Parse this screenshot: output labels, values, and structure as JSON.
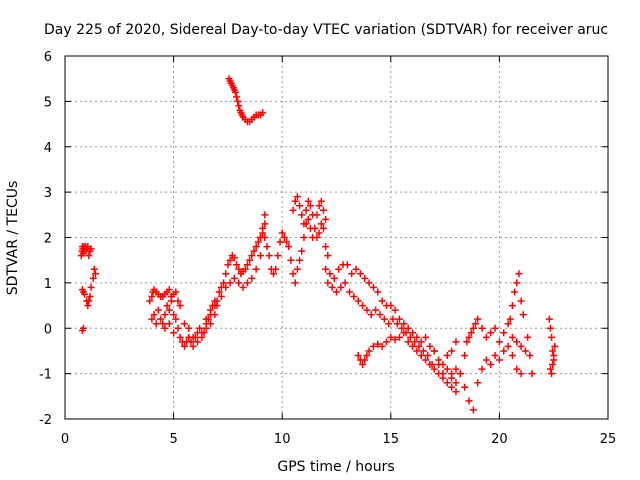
{
  "chart_data": {
    "type": "scatter",
    "title": "Day 225 of 2020, Sidereal Day-to-day VTEC variation (SDTVAR) for receiver aruc",
    "xlabel": "GPS time / hours",
    "ylabel": "SDTVAR / TECUs",
    "xlim": [
      0,
      25
    ],
    "ylim": [
      -2,
      6
    ],
    "xticks": [
      0,
      5,
      10,
      15,
      20,
      25
    ],
    "yticks": [
      -2,
      -1,
      0,
      1,
      2,
      3,
      4,
      5,
      6
    ],
    "grid": true,
    "marker": "+",
    "series": [
      {
        "name": "SDTVAR",
        "color": "#ff0000",
        "x": [
          0.75,
          0.78,
          0.8,
          0.82,
          0.85,
          0.88,
          0.9,
          0.95,
          1.0,
          1.05,
          1.1,
          1.15,
          1.2,
          0.8,
          0.85,
          0.9,
          1.0,
          1.05,
          1.1,
          1.15,
          1.2,
          1.3,
          1.35,
          1.4,
          0.8,
          0.85,
          3.9,
          4.0,
          4.05,
          4.1,
          4.2,
          4.3,
          4.4,
          4.5,
          4.6,
          4.7,
          4.8,
          4.9,
          5.0,
          5.1,
          5.2,
          5.3,
          4.0,
          4.1,
          4.2,
          4.3,
          4.4,
          4.5,
          4.6,
          4.7,
          4.8,
          4.9,
          5.0,
          5.1,
          4.6,
          4.8,
          5.0,
          5.2,
          5.3,
          5.4,
          5.5,
          5.6,
          5.7,
          5.8,
          5.9,
          6.0,
          6.1,
          6.2,
          6.3,
          6.4,
          6.5,
          6.6,
          6.7,
          6.8,
          6.9,
          5.5,
          5.7,
          5.9,
          6.1,
          6.3,
          6.5,
          6.7,
          6.9,
          6.5,
          6.7,
          6.9,
          7.0,
          7.1,
          7.2,
          7.3,
          7.4,
          7.5,
          7.6,
          7.7,
          7.8,
          7.9,
          8.0,
          8.1,
          8.2,
          8.3,
          8.4,
          8.5,
          8.6,
          8.7,
          8.8,
          8.9,
          9.0,
          9.1,
          9.2,
          7.0,
          7.2,
          7.4,
          7.6,
          7.8,
          8.0,
          8.2,
          8.4,
          8.6,
          8.8,
          9.0,
          9.2,
          7.55,
          7.6,
          7.65,
          7.7,
          7.75,
          7.8,
          7.85,
          7.9,
          7.95,
          8.0,
          8.05,
          8.1,
          8.15,
          8.2,
          8.3,
          8.4,
          8.5,
          8.6,
          8.7,
          8.8,
          8.9,
          9.0,
          9.1,
          9.0,
          9.1,
          9.2,
          9.3,
          9.4,
          9.5,
          9.6,
          9.7,
          9.8,
          9.9,
          10.0,
          10.1,
          10.2,
          10.3,
          10.4,
          10.5,
          10.6,
          10.7,
          10.8,
          10.9,
          11.0,
          11.1,
          11.2,
          11.3,
          11.4,
          11.5,
          11.6,
          11.7,
          11.8,
          11.9,
          12.0,
          10.5,
          10.6,
          10.7,
          10.8,
          10.9,
          11.0,
          11.1,
          11.2,
          11.3,
          11.4,
          11.5,
          11.6,
          11.7,
          11.8,
          11.9,
          12.0,
          12.1,
          12.0,
          12.2,
          12.4,
          12.6,
          12.8,
          13.0,
          13.2,
          13.4,
          13.6,
          13.8,
          14.0,
          14.2,
          14.4,
          14.6,
          14.8,
          15.0,
          15.2,
          15.4,
          15.6,
          15.8,
          16.0,
          16.2,
          16.4,
          16.6,
          16.8,
          17.0,
          17.2,
          17.4,
          17.6,
          17.8,
          18.0,
          12.1,
          12.3,
          12.5,
          12.7,
          12.9,
          13.1,
          13.3,
          13.5,
          13.7,
          13.9,
          14.1,
          14.3,
          14.5,
          14.7,
          14.9,
          15.1,
          15.3,
          15.5,
          15.7,
          15.9,
          16.1,
          16.3,
          16.5,
          16.7,
          16.9,
          13.5,
          13.6,
          13.7,
          13.8,
          13.9,
          14.0,
          14.2,
          14.4,
          14.6,
          14.8,
          15.0,
          15.2,
          15.4,
          15.6,
          15.8,
          16.0,
          16.2,
          16.4,
          16.6,
          16.8,
          17.0,
          17.2,
          17.4,
          17.6,
          17.8,
          18.0,
          17.0,
          17.2,
          17.4,
          17.6,
          17.8,
          18.0,
          18.2,
          18.4,
          18.5,
          18.6,
          18.7,
          18.8,
          18.9,
          19.0,
          19.2,
          19.4,
          19.6,
          19.8,
          20.0,
          20.2,
          20.4,
          20.6,
          20.8,
          21.0,
          21.2,
          17.6,
          17.8,
          18.0,
          18.2,
          18.4,
          18.6,
          18.8,
          19.0,
          19.2,
          19.4,
          19.6,
          19.8,
          20.0,
          20.2,
          20.4,
          20.6,
          20.8,
          21.0,
          20.5,
          20.6,
          20.7,
          20.8,
          20.9,
          21.0,
          21.1,
          21.3,
          21.4,
          21.5,
          22.3,
          22.35,
          22.4,
          22.45,
          22.5,
          22.35,
          22.4,
          22.45,
          22.5,
          22.55
        ],
        "y": [
          1.6,
          1.7,
          1.8,
          1.75,
          1.65,
          1.8,
          1.7,
          1.8,
          1.75,
          1.8,
          1.6,
          1.7,
          1.75,
          0.85,
          0.8,
          0.75,
          0.6,
          0.5,
          0.6,
          0.7,
          0.9,
          1.1,
          1.3,
          1.2,
          -0.05,
          -0.0,
          0.6,
          0.7,
          0.8,
          0.85,
          0.8,
          0.75,
          0.7,
          0.7,
          0.75,
          0.8,
          0.85,
          0.7,
          0.75,
          0.8,
          0.6,
          0.5,
          0.2,
          0.3,
          0.1,
          0.4,
          0.2,
          0.1,
          0.3,
          0.5,
          0.4,
          0.6,
          0.3,
          0.2,
          0.0,
          0.1,
          -0.1,
          0.0,
          -0.2,
          -0.3,
          -0.4,
          -0.3,
          -0.2,
          -0.3,
          -0.4,
          -0.2,
          -0.1,
          0.0,
          -0.2,
          -0.1,
          0.1,
          0.2,
          0.3,
          0.5,
          0.6,
          0.1,
          0.0,
          -0.2,
          -0.3,
          -0.1,
          0.0,
          0.1,
          0.3,
          0.2,
          0.4,
          0.5,
          0.6,
          0.8,
          0.9,
          1.0,
          1.2,
          1.4,
          1.5,
          1.6,
          1.55,
          1.4,
          1.3,
          1.2,
          1.25,
          1.3,
          1.4,
          1.5,
          1.6,
          1.7,
          1.8,
          1.9,
          2.0,
          2.2,
          2.5,
          0.5,
          0.7,
          0.9,
          1.0,
          1.1,
          1.0,
          0.9,
          1.0,
          1.1,
          1.3,
          1.6,
          2.3,
          5.5,
          5.45,
          5.4,
          5.35,
          5.3,
          5.25,
          5.2,
          5.1,
          5.0,
          4.9,
          4.8,
          4.75,
          4.7,
          4.65,
          4.6,
          4.55,
          4.55,
          4.6,
          4.65,
          4.7,
          4.7,
          4.7,
          4.75,
          2.0,
          2.1,
          2.0,
          1.8,
          1.6,
          1.3,
          1.2,
          1.3,
          1.6,
          1.9,
          2.1,
          2.0,
          1.9,
          1.8,
          1.5,
          1.2,
          1.0,
          1.3,
          1.5,
          1.7,
          2.0,
          2.3,
          2.4,
          2.2,
          2.0,
          2.2,
          2.5,
          2.7,
          2.8,
          2.6,
          2.4,
          2.6,
          2.8,
          2.9,
          2.7,
          2.5,
          2.3,
          2.6,
          2.8,
          2.7,
          2.5,
          2.2,
          2.0,
          2.1,
          2.3,
          2.2,
          1.8,
          1.6,
          1.3,
          1.2,
          1.1,
          1.3,
          1.4,
          1.4,
          1.2,
          1.3,
          1.2,
          1.1,
          1.0,
          0.9,
          0.8,
          0.6,
          0.5,
          0.5,
          0.4,
          0.2,
          0.1,
          0.0,
          -0.1,
          -0.2,
          -0.3,
          -0.2,
          -0.4,
          -0.5,
          -0.7,
          -0.8,
          -0.6,
          -0.5,
          -0.3,
          1.0,
          0.9,
          0.8,
          0.9,
          1.0,
          0.8,
          0.7,
          0.6,
          0.5,
          0.4,
          0.3,
          0.4,
          0.3,
          0.2,
          0.1,
          0.2,
          0.1,
          0.0,
          -0.1,
          -0.2,
          -0.3,
          -0.4,
          -0.5,
          -0.6,
          -0.8,
          -0.6,
          -0.7,
          -0.8,
          -0.7,
          -0.6,
          -0.5,
          -0.4,
          -0.35,
          -0.4,
          -0.3,
          -0.2,
          -0.25,
          -0.2,
          -0.1,
          -0.3,
          -0.4,
          -0.5,
          -0.6,
          -0.7,
          -0.8,
          -0.9,
          -1.0,
          -1.1,
          -1.2,
          -1.0,
          -0.9,
          -0.5,
          -0.8,
          -1.0,
          -1.2,
          -1.3,
          -1.4,
          -1.0,
          -0.6,
          -0.3,
          -0.2,
          -0.1,
          0.0,
          0.1,
          0.2,
          0.0,
          -0.2,
          -0.1,
          0.0,
          -0.3,
          -0.1,
          0.1,
          -0.2,
          -0.3,
          -0.4,
          -0.5,
          -0.9,
          -1.1,
          -1.2,
          -1.0,
          -1.3,
          -1.6,
          -1.8,
          -1.2,
          -0.9,
          -0.7,
          -0.8,
          -0.6,
          -0.7,
          -0.5,
          -0.4,
          -0.6,
          -0.9,
          -1.0,
          0.2,
          0.5,
          0.8,
          1.0,
          1.2,
          0.6,
          0.3,
          -0.2,
          -0.6,
          -1.0,
          0.2,
          0.0,
          -0.2,
          -0.5,
          -0.7,
          -0.9,
          -1.0,
          -0.8,
          -0.6,
          -0.4
        ]
      }
    ]
  }
}
